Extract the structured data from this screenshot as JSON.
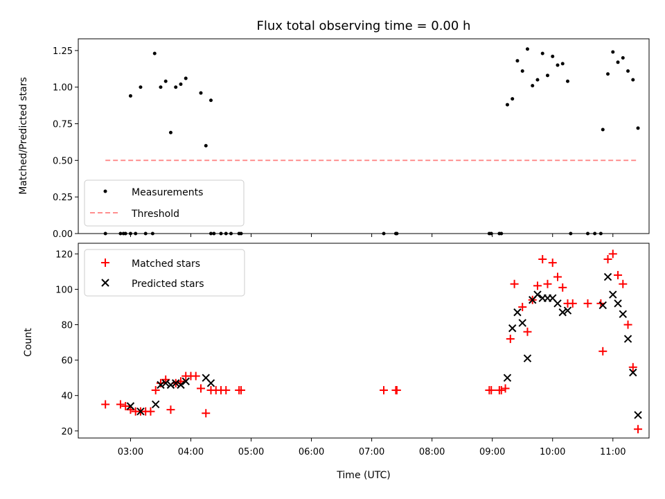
{
  "title": "Flux total observing time = 0.00 h",
  "colors": {
    "measurement": "#000000",
    "threshold": "#ff7f7f",
    "matched": "#ff0000",
    "predicted": "#000000"
  },
  "chart_data": [
    {
      "type": "scatter",
      "panel": "top",
      "ylabel": "Matched/Predicted stars",
      "ylim": [
        0,
        1.33
      ],
      "yticks": [
        "0.00",
        "0.25",
        "0.50",
        "0.75",
        "1.00",
        "1.25"
      ],
      "legend": "lower-left",
      "series": [
        {
          "name": "Measurements",
          "marker": "dot",
          "points": [
            [
              "02:35",
              0
            ],
            [
              "02:50",
              0
            ],
            [
              "02:53",
              0
            ],
            [
              "02:55",
              0
            ],
            [
              "03:00",
              0
            ],
            [
              "03:05",
              0
            ],
            [
              "03:15",
              0
            ],
            [
              "03:22",
              0
            ],
            [
              "03:00",
              0.94
            ],
            [
              "03:10",
              1.0
            ],
            [
              "03:24",
              1.23
            ],
            [
              "03:30",
              1.0
            ],
            [
              "03:35",
              1.04
            ],
            [
              "03:40",
              0.69
            ],
            [
              "03:45",
              1.0
            ],
            [
              "03:50",
              1.02
            ],
            [
              "03:55",
              1.06
            ],
            [
              "04:10",
              0.96
            ],
            [
              "04:15",
              0.6
            ],
            [
              "04:20",
              0.91
            ],
            [
              "04:20",
              0
            ],
            [
              "04:23",
              0
            ],
            [
              "04:30",
              0
            ],
            [
              "04:35",
              0
            ],
            [
              "04:40",
              0
            ],
            [
              "04:48",
              0
            ],
            [
              "04:50",
              0
            ],
            [
              "07:12",
              0
            ],
            [
              "07:24",
              0
            ],
            [
              "07:25",
              0
            ],
            [
              "08:57",
              0
            ],
            [
              "08:59",
              0
            ],
            [
              "09:07",
              0
            ],
            [
              "09:09",
              0
            ],
            [
              "09:15",
              0.88
            ],
            [
              "09:20",
              0.92
            ],
            [
              "09:25",
              1.18
            ],
            [
              "09:30",
              1.11
            ],
            [
              "09:35",
              1.26
            ],
            [
              "09:40",
              1.01
            ],
            [
              "09:45",
              1.05
            ],
            [
              "09:50",
              1.23
            ],
            [
              "09:55",
              1.08
            ],
            [
              "10:00",
              1.21
            ],
            [
              "10:05",
              1.15
            ],
            [
              "10:10",
              1.16
            ],
            [
              "10:15",
              1.04
            ],
            [
              "10:18",
              0
            ],
            [
              "10:35",
              0
            ],
            [
              "10:42",
              0
            ],
            [
              "10:48",
              0
            ],
            [
              "10:50",
              0.71
            ],
            [
              "10:55",
              1.09
            ],
            [
              "11:00",
              1.24
            ],
            [
              "11:05",
              1.17
            ],
            [
              "11:10",
              1.2
            ],
            [
              "11:15",
              1.11
            ],
            [
              "11:20",
              1.05
            ],
            [
              "11:25",
              0.72
            ]
          ]
        },
        {
          "name": "Threshold",
          "style": "dashed",
          "points": [
            [
              "02:35",
              0.5
            ],
            [
              "11:25",
              0.5
            ]
          ]
        }
      ]
    },
    {
      "type": "scatter",
      "panel": "bottom",
      "xlabel": "Time (UTC)",
      "ylabel": "Count",
      "ylim": [
        16,
        126
      ],
      "yticks": [
        "20",
        "40",
        "60",
        "80",
        "100",
        "120"
      ],
      "xticks": [
        "03:00",
        "04:00",
        "05:00",
        "06:00",
        "07:00",
        "08:00",
        "09:00",
        "10:00",
        "11:00"
      ],
      "xlim": [
        "02:08",
        "11:36"
      ],
      "legend": "top-left",
      "series": [
        {
          "name": "Matched stars",
          "marker": "plus",
          "points": [
            [
              "02:35",
              35
            ],
            [
              "02:50",
              35
            ],
            [
              "02:55",
              34
            ],
            [
              "03:00",
              32
            ],
            [
              "03:05",
              31
            ],
            [
              "03:10",
              31
            ],
            [
              "03:15",
              31
            ],
            [
              "03:20",
              31
            ],
            [
              "03:25",
              43
            ],
            [
              "03:30",
              47
            ],
            [
              "03:35",
              49
            ],
            [
              "03:40",
              32
            ],
            [
              "03:45",
              47
            ],
            [
              "03:50",
              48
            ],
            [
              "03:55",
              51
            ],
            [
              "04:00",
              51
            ],
            [
              "04:05",
              51
            ],
            [
              "04:10",
              44
            ],
            [
              "04:15",
              30
            ],
            [
              "04:20",
              43
            ],
            [
              "04:25",
              43
            ],
            [
              "04:30",
              43
            ],
            [
              "04:35",
              43
            ],
            [
              "04:48",
              43
            ],
            [
              "04:50",
              43
            ],
            [
              "07:12",
              43
            ],
            [
              "07:24",
              43
            ],
            [
              "07:25",
              43
            ],
            [
              "08:57",
              43
            ],
            [
              "08:59",
              43
            ],
            [
              "09:07",
              43
            ],
            [
              "09:09",
              43
            ],
            [
              "09:13",
              44
            ],
            [
              "09:18",
              72
            ],
            [
              "09:22",
              103
            ],
            [
              "09:30",
              90
            ],
            [
              "09:35",
              76
            ],
            [
              "09:40",
              94
            ],
            [
              "09:45",
              102
            ],
            [
              "09:50",
              117
            ],
            [
              "09:55",
              103
            ],
            [
              "10:00",
              115
            ],
            [
              "10:05",
              107
            ],
            [
              "10:10",
              101
            ],
            [
              "10:15",
              92
            ],
            [
              "10:20",
              92
            ],
            [
              "10:35",
              92
            ],
            [
              "10:48",
              92
            ],
            [
              "10:50",
              65
            ],
            [
              "10:55",
              117
            ],
            [
              "11:00",
              120
            ],
            [
              "11:05",
              108
            ],
            [
              "11:10",
              103
            ],
            [
              "11:15",
              80
            ],
            [
              "11:20",
              56
            ],
            [
              "11:25",
              21
            ]
          ]
        },
        {
          "name": "Predicted stars",
          "marker": "x",
          "points": [
            [
              "03:00",
              34
            ],
            [
              "03:10",
              31
            ],
            [
              "03:25",
              35
            ],
            [
              "03:30",
              46
            ],
            [
              "03:35",
              47
            ],
            [
              "03:40",
              46
            ],
            [
              "03:45",
              47
            ],
            [
              "03:50",
              46
            ],
            [
              "03:55",
              48
            ],
            [
              "04:15",
              50
            ],
            [
              "04:20",
              47
            ],
            [
              "09:15",
              50
            ],
            [
              "09:20",
              78
            ],
            [
              "09:25",
              87
            ],
            [
              "09:30",
              81
            ],
            [
              "09:35",
              61
            ],
            [
              "09:40",
              94
            ],
            [
              "09:45",
              97
            ],
            [
              "09:50",
              95
            ],
            [
              "09:55",
              95
            ],
            [
              "10:00",
              95
            ],
            [
              "10:05",
              92
            ],
            [
              "10:10",
              87
            ],
            [
              "10:15",
              88
            ],
            [
              "10:50",
              91
            ],
            [
              "10:55",
              107
            ],
            [
              "11:00",
              97
            ],
            [
              "11:05",
              92
            ],
            [
              "11:10",
              86
            ],
            [
              "11:15",
              72
            ],
            [
              "11:20",
              53
            ],
            [
              "11:25",
              29
            ]
          ]
        }
      ]
    }
  ]
}
